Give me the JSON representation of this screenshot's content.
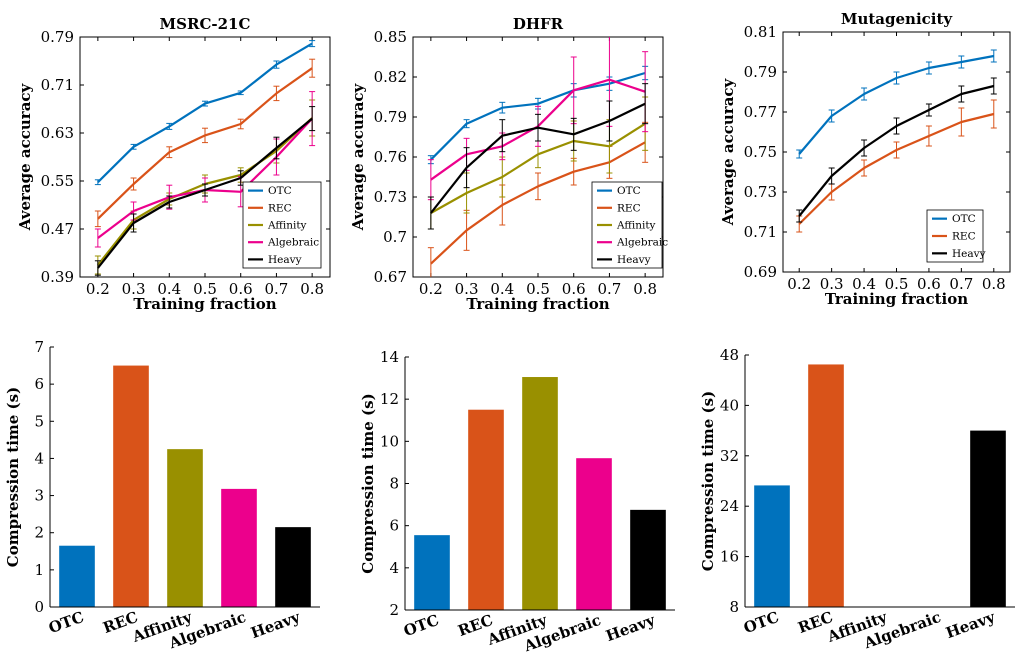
{
  "colors": {
    "OTC": "#0072bd",
    "REC": "#d95319",
    "Affinity": "#999000",
    "Algebraic": "#ec008c",
    "Heavy": "#000000"
  },
  "chart_data": [
    {
      "type": "line",
      "title": "MSRC-21C",
      "xlabel": "Training fraction",
      "ylabel": "Average accuracy",
      "x": [
        0.2,
        0.3,
        0.4,
        0.5,
        0.6,
        0.7,
        0.8
      ],
      "xticks": [
        "0.2",
        "0.3",
        "0.4",
        "0.5",
        "0.6",
        "0.7",
        "0.8"
      ],
      "xlim": [
        0.15,
        0.85
      ],
      "ylim": [
        0.39,
        0.79
      ],
      "yticks": [
        "0.39",
        "0.47",
        "0.55",
        "0.63",
        "0.71",
        "0.79"
      ],
      "legend_position": "bottom-right",
      "series": [
        {
          "name": "OTC",
          "values": [
            0.548,
            0.607,
            0.641,
            0.679,
            0.697,
            0.744,
            0.779
          ],
          "err": [
            0.004,
            0.004,
            0.005,
            0.004,
            0.003,
            0.006,
            0.005
          ]
        },
        {
          "name": "REC",
          "values": [
            0.487,
            0.545,
            0.598,
            0.626,
            0.645,
            0.696,
            0.738
          ],
          "err": [
            0.013,
            0.01,
            0.009,
            0.012,
            0.008,
            0.012,
            0.015
          ]
        },
        {
          "name": "Affinity",
          "values": [
            0.41,
            0.485,
            0.52,
            0.545,
            0.56,
            0.6,
            0.655
          ],
          "err": [
            0.015,
            0.015,
            0.01,
            0.015,
            0.012,
            0.02,
            0.03
          ]
        },
        {
          "name": "Algebraic",
          "values": [
            0.455,
            0.5,
            0.523,
            0.535,
            0.532,
            0.59,
            0.654
          ],
          "err": [
            0.015,
            0.015,
            0.02,
            0.02,
            0.025,
            0.03,
            0.045
          ]
        },
        {
          "name": "Heavy",
          "values": [
            0.405,
            0.48,
            0.515,
            0.535,
            0.555,
            0.605,
            0.654
          ],
          "err": [
            0.012,
            0.015,
            0.01,
            0.01,
            0.012,
            0.018,
            0.02
          ]
        }
      ]
    },
    {
      "type": "line",
      "title": "DHFR",
      "xlabel": "Training fraction",
      "ylabel": "Average accuracy",
      "x": [
        0.2,
        0.3,
        0.4,
        0.5,
        0.6,
        0.7,
        0.8
      ],
      "xticks": [
        "0.2",
        "0.3",
        "0.4",
        "0.5",
        "0.6",
        "0.7",
        "0.8"
      ],
      "xlim": [
        0.15,
        0.85
      ],
      "ylim": [
        0.67,
        0.85
      ],
      "yticks": [
        "0.67",
        "0.7",
        "0.73",
        "0.76",
        "0.79",
        "0.82",
        "0.85"
      ],
      "legend_position": "bottom-right",
      "series": [
        {
          "name": "OTC",
          "values": [
            0.758,
            0.785,
            0.797,
            0.8,
            0.81,
            0.815,
            0.823
          ],
          "err": [
            0.003,
            0.003,
            0.004,
            0.004,
            0.005,
            0.005,
            0.005
          ]
        },
        {
          "name": "REC",
          "values": [
            0.68,
            0.705,
            0.724,
            0.738,
            0.749,
            0.756,
            0.771
          ],
          "err": [
            0.012,
            0.015,
            0.015,
            0.01,
            0.01,
            0.012,
            0.015
          ]
        },
        {
          "name": "Affinity",
          "values": [
            0.718,
            0.733,
            0.745,
            0.762,
            0.772,
            0.768,
            0.785
          ],
          "err": [
            0.012,
            0.015,
            0.015,
            0.01,
            0.015,
            0.02,
            0.02
          ]
        },
        {
          "name": "Algebraic",
          "values": [
            0.743,
            0.762,
            0.768,
            0.783,
            0.81,
            0.818,
            0.809
          ],
          "err": [
            0.015,
            0.012,
            0.01,
            0.015,
            0.025,
            0.035,
            0.03
          ]
        },
        {
          "name": "Heavy",
          "values": [
            0.718,
            0.752,
            0.776,
            0.782,
            0.777,
            0.787,
            0.8
          ],
          "err": [
            0.012,
            0.015,
            0.012,
            0.01,
            0.012,
            0.015,
            0.015
          ]
        }
      ]
    },
    {
      "type": "line",
      "title": "Mutagenicity",
      "xlabel": "Training fraction",
      "ylabel": "Average accuracy",
      "x": [
        0.2,
        0.3,
        0.4,
        0.5,
        0.6,
        0.7,
        0.8
      ],
      "xticks": [
        "0.2",
        "0.3",
        "0.4",
        "0.5",
        "0.6",
        "0.7",
        "0.8"
      ],
      "xlim": [
        0.15,
        0.85
      ],
      "ylim": [
        0.69,
        0.81
      ],
      "yticks": [
        "0.69",
        "0.71",
        "0.73",
        "0.75",
        "0.77",
        "0.79",
        "0.81"
      ],
      "legend_position": "bottom-right",
      "series": [
        {
          "name": "OTC",
          "values": [
            0.749,
            0.768,
            0.779,
            0.787,
            0.792,
            0.795,
            0.798
          ],
          "err": [
            0.002,
            0.003,
            0.003,
            0.003,
            0.003,
            0.003,
            0.003
          ]
        },
        {
          "name": "REC",
          "values": [
            0.714,
            0.73,
            0.742,
            0.751,
            0.758,
            0.765,
            0.769
          ],
          "err": [
            0.004,
            0.004,
            0.004,
            0.004,
            0.005,
            0.007,
            0.007
          ]
        },
        {
          "name": "Heavy",
          "values": [
            0.718,
            0.738,
            0.752,
            0.763,
            0.771,
            0.779,
            0.783
          ],
          "err": [
            0.003,
            0.004,
            0.004,
            0.004,
            0.003,
            0.004,
            0.004
          ]
        }
      ]
    },
    {
      "type": "bar",
      "title": "",
      "xlabel": "",
      "ylabel": "Compression time (s)",
      "categories": [
        "OTC",
        "REC",
        "Affinity",
        "Algebraic",
        "Heavy"
      ],
      "values": [
        1.65,
        6.5,
        4.25,
        3.18,
        2.15
      ],
      "ylim": [
        0,
        7
      ],
      "yticks": [
        "0",
        "1",
        "2",
        "3",
        "4",
        "5",
        "6",
        "7"
      ]
    },
    {
      "type": "bar",
      "title": "",
      "xlabel": "",
      "ylabel": "Compression time (s)",
      "categories": [
        "OTC",
        "REC",
        "Affinity",
        "Algebraic",
        "Heavy"
      ],
      "values": [
        5.55,
        11.5,
        13.05,
        9.2,
        6.75
      ],
      "ylim": [
        2,
        14
      ],
      "yticks": [
        "2",
        "4",
        "6",
        "8",
        "10",
        "12",
        "14"
      ]
    },
    {
      "type": "bar",
      "title": "",
      "xlabel": "",
      "ylabel": "Compression time (s)",
      "categories": [
        "OTC",
        "REC",
        "Affinity",
        "Algebraic",
        "Heavy"
      ],
      "values": [
        27.3,
        46.5,
        null,
        null,
        36.0
      ],
      "ylim": [
        8,
        48
      ],
      "yticks": [
        "8",
        "16",
        "24",
        "32",
        "40",
        "48"
      ]
    }
  ]
}
